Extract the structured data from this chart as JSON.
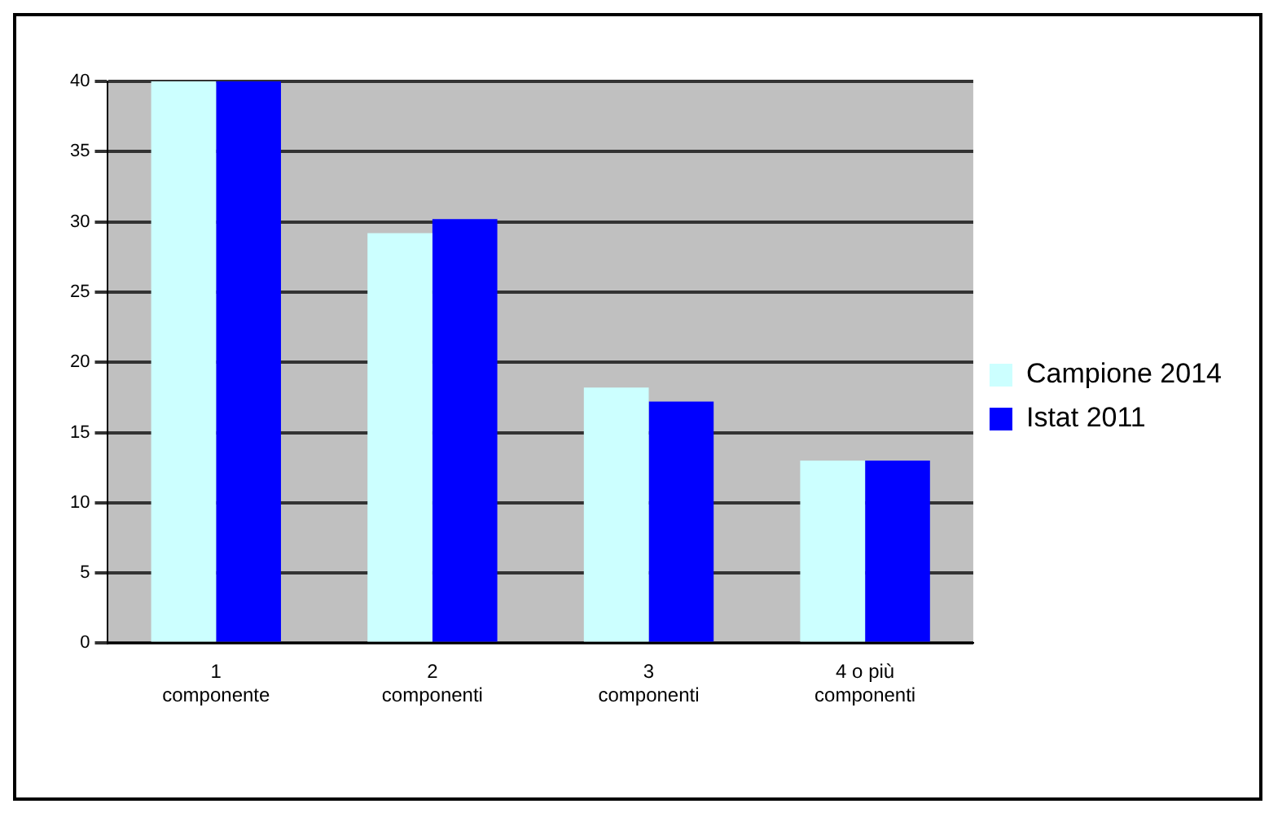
{
  "chart_data": {
    "type": "bar",
    "categories": [
      "1 componente",
      "2 componenti",
      "3 componenti",
      "4 o più componenti"
    ],
    "series": [
      {
        "name": "Campione 2014",
        "color": "#ccffff",
        "values": [
          40,
          29.2,
          18.2,
          13
        ]
      },
      {
        "name": "Istat 2011",
        "color": "#0000ff",
        "values": [
          40,
          30.2,
          17.2,
          13
        ]
      }
    ],
    "ylim": [
      0,
      40
    ],
    "yticks": [
      0,
      5,
      10,
      15,
      20,
      25,
      30,
      35,
      40
    ],
    "grid": "y",
    "legend": "right"
  }
}
